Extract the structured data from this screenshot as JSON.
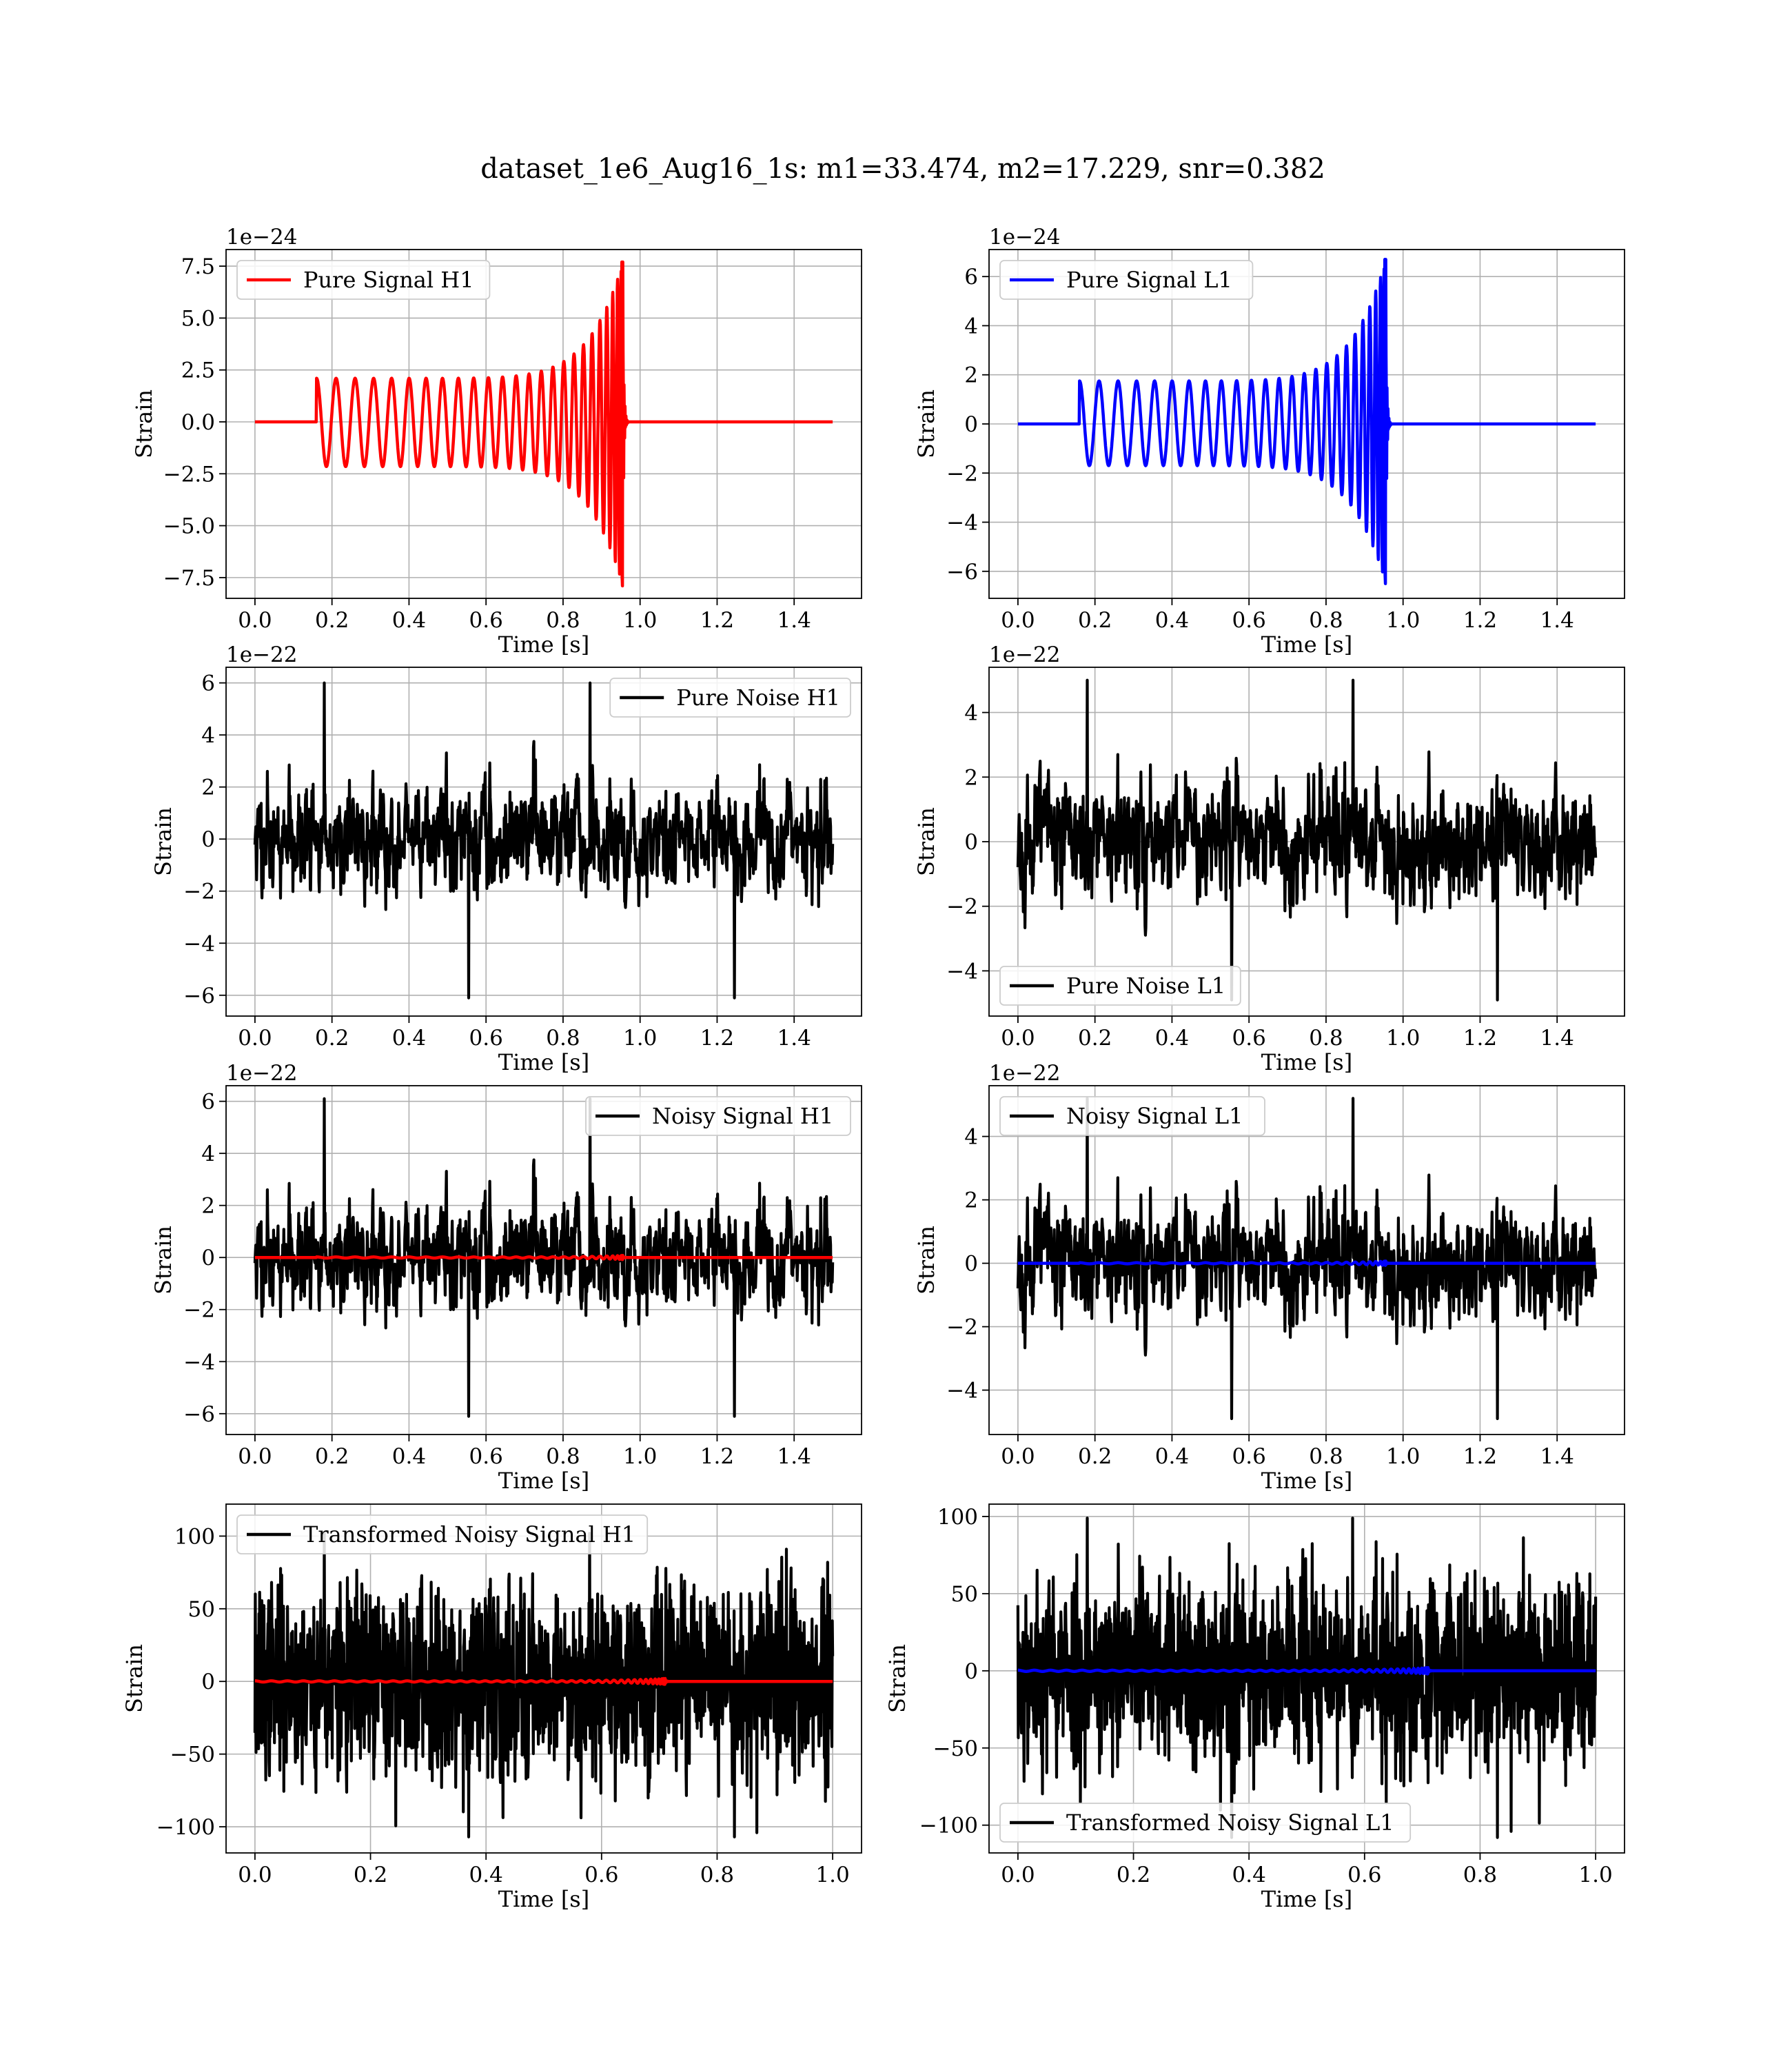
{
  "figure": {
    "title": "dataset_1e6_Aug16_1s: m1=33.474, m2=17.229, snr=0.382"
  },
  "colors": {
    "h1_signal": "#ff0000",
    "l1_signal": "#0000ff",
    "noise": "#000000",
    "grid": "#b0b0b0"
  },
  "chart_data": [
    {
      "type": "line",
      "title": "",
      "xlabel": "Time [s]",
      "ylabel": "Strain",
      "offset_text": "1e−24",
      "xlim": [
        -0.075,
        1.575
      ],
      "ylim": [
        -8.5,
        8.3
      ],
      "xticks": [
        0.0,
        0.2,
        0.4,
        0.6,
        0.8,
        1.0,
        1.2,
        1.4
      ],
      "xtick_labels": [
        "0.0",
        "0.2",
        "0.4",
        "0.6",
        "0.8",
        "1.0",
        "1.2",
        "1.4"
      ],
      "yticks": [
        -7.5,
        -5.0,
        -2.5,
        0.0,
        2.5,
        5.0,
        7.5
      ],
      "ytick_labels": [
        "−7.5",
        "−5.0",
        "−2.5",
        "0.0",
        "2.5",
        "5.0",
        "7.5"
      ],
      "grid": true,
      "legend_position": "upper left",
      "series": [
        {
          "name": "Pure Signal H1",
          "color": "#ff0000",
          "kind": "chirp",
          "x_start": 0.0,
          "x_end": 1.5,
          "onset": 0.16,
          "merger": 0.955,
          "amp_start": 2.1,
          "amp_peak": 7.7,
          "amp_min": -7.9,
          "ringdown": 0.015,
          "cycles": 25
        }
      ]
    },
    {
      "type": "line",
      "title": "",
      "xlabel": "Time [s]",
      "ylabel": "Strain",
      "offset_text": "1e−24",
      "xlim": [
        -0.075,
        1.575
      ],
      "ylim": [
        -7.1,
        7.1
      ],
      "xticks": [
        0.0,
        0.2,
        0.4,
        0.6,
        0.8,
        1.0,
        1.2,
        1.4
      ],
      "xtick_labels": [
        "0.0",
        "0.2",
        "0.4",
        "0.6",
        "0.8",
        "1.0",
        "1.2",
        "1.4"
      ],
      "yticks": [
        -6,
        -4,
        -2,
        0,
        2,
        4,
        6
      ],
      "ytick_labels": [
        "−6",
        "−4",
        "−2",
        "0",
        "2",
        "4",
        "6"
      ],
      "grid": true,
      "legend_position": "upper left",
      "series": [
        {
          "name": "Pure Signal L1",
          "color": "#0000ff",
          "kind": "chirp",
          "x_start": 0.0,
          "x_end": 1.5,
          "onset": 0.16,
          "merger": 0.955,
          "amp_start": 1.75,
          "amp_peak": 6.7,
          "amp_min": -6.5,
          "ringdown": 0.015,
          "cycles": 25
        }
      ]
    },
    {
      "type": "line",
      "title": "",
      "xlabel": "Time [s]",
      "ylabel": "Strain",
      "offset_text": "1e−22",
      "xlim": [
        -0.075,
        1.575
      ],
      "ylim": [
        -6.8,
        6.6
      ],
      "xticks": [
        0.0,
        0.2,
        0.4,
        0.6,
        0.8,
        1.0,
        1.2,
        1.4
      ],
      "xtick_labels": [
        "0.0",
        "0.2",
        "0.4",
        "0.6",
        "0.8",
        "1.0",
        "1.2",
        "1.4"
      ],
      "yticks": [
        -6,
        -4,
        -2,
        0,
        2,
        4,
        6
      ],
      "ytick_labels": [
        "−6",
        "−4",
        "−2",
        "0",
        "2",
        "4",
        "6"
      ],
      "grid": true,
      "legend_position": "upper right",
      "series": [
        {
          "name": "Pure Noise H1",
          "color": "#000000",
          "kind": "noise",
          "x_start": 0.0,
          "x_end": 1.5,
          "n": 1400,
          "amp": 1.5,
          "peak_max": 6.0,
          "peak_min": -6.1,
          "seed": 11
        }
      ]
    },
    {
      "type": "line",
      "title": "",
      "xlabel": "Time [s]",
      "ylabel": "Strain",
      "offset_text": "1e−22",
      "xlim": [
        -0.075,
        1.575
      ],
      "ylim": [
        -5.4,
        5.4
      ],
      "xticks": [
        0.0,
        0.2,
        0.4,
        0.6,
        0.8,
        1.0,
        1.2,
        1.4
      ],
      "xtick_labels": [
        "0.0",
        "0.2",
        "0.4",
        "0.6",
        "0.8",
        "1.0",
        "1.2",
        "1.4"
      ],
      "yticks": [
        -4,
        -2,
        0,
        2,
        4
      ],
      "ytick_labels": [
        "−4",
        "−2",
        "0",
        "2",
        "4"
      ],
      "grid": true,
      "legend_position": "lower left",
      "series": [
        {
          "name": "Pure Noise L1",
          "color": "#000000",
          "kind": "noise",
          "x_start": 0.0,
          "x_end": 1.5,
          "n": 1400,
          "amp": 1.4,
          "peak_max": 5.0,
          "peak_min": -4.9,
          "seed": 23
        }
      ]
    },
    {
      "type": "line",
      "title": "",
      "xlabel": "Time [s]",
      "ylabel": "Strain",
      "offset_text": "1e−22",
      "xlim": [
        -0.075,
        1.575
      ],
      "ylim": [
        -6.8,
        6.6
      ],
      "xticks": [
        0.0,
        0.2,
        0.4,
        0.6,
        0.8,
        1.0,
        1.2,
        1.4
      ],
      "xtick_labels": [
        "0.0",
        "0.2",
        "0.4",
        "0.6",
        "0.8",
        "1.0",
        "1.2",
        "1.4"
      ],
      "yticks": [
        -6,
        -4,
        -2,
        0,
        2,
        4,
        6
      ],
      "ytick_labels": [
        "−6",
        "−4",
        "−2",
        "0",
        "2",
        "4",
        "6"
      ],
      "grid": true,
      "legend_position": "upper right",
      "series": [
        {
          "name": "Noisy Signal H1",
          "color": "#000000",
          "kind": "noise",
          "x_start": 0.0,
          "x_end": 1.5,
          "n": 1400,
          "amp": 1.5,
          "peak_max": 6.1,
          "peak_min": -6.1,
          "seed": 11
        },
        {
          "color": "#ff0000",
          "kind": "chirp",
          "x_start": 0.0,
          "x_end": 1.5,
          "onset": 0.16,
          "merger": 0.955,
          "amp_start": 0.021,
          "amp_peak": 0.077,
          "amp_min": -0.079,
          "ringdown": 0.015,
          "cycles": 25
        }
      ]
    },
    {
      "type": "line",
      "title": "",
      "xlabel": "Time [s]",
      "ylabel": "Strain",
      "offset_text": "1e−22",
      "xlim": [
        -0.075,
        1.575
      ],
      "ylim": [
        -5.4,
        5.6
      ],
      "xticks": [
        0.0,
        0.2,
        0.4,
        0.6,
        0.8,
        1.0,
        1.2,
        1.4
      ],
      "xtick_labels": [
        "0.0",
        "0.2",
        "0.4",
        "0.6",
        "0.8",
        "1.0",
        "1.2",
        "1.4"
      ],
      "yticks": [
        -4,
        -2,
        0,
        2,
        4
      ],
      "ytick_labels": [
        "−4",
        "−2",
        "0",
        "2",
        "4"
      ],
      "grid": true,
      "legend_position": "upper left",
      "series": [
        {
          "name": "Noisy Signal L1",
          "color": "#000000",
          "kind": "noise",
          "x_start": 0.0,
          "x_end": 1.5,
          "n": 1400,
          "amp": 1.4,
          "peak_max": 5.2,
          "peak_min": -4.9,
          "seed": 23
        },
        {
          "color": "#0000ff",
          "kind": "chirp",
          "x_start": 0.0,
          "x_end": 1.5,
          "onset": 0.16,
          "merger": 0.955,
          "amp_start": 0.0175,
          "amp_peak": 0.067,
          "amp_min": -0.065,
          "ringdown": 0.015,
          "cycles": 25
        }
      ]
    },
    {
      "type": "line",
      "title": "",
      "xlabel": "Time [s]",
      "ylabel": "Strain",
      "offset_text": "",
      "xlim": [
        -0.05,
        1.05
      ],
      "ylim": [
        -118,
        122
      ],
      "xticks": [
        0.0,
        0.2,
        0.4,
        0.6,
        0.8,
        1.0
      ],
      "xtick_labels": [
        "0.0",
        "0.2",
        "0.4",
        "0.6",
        "0.8",
        "1.0"
      ],
      "yticks": [
        -100,
        -50,
        0,
        50,
        100
      ],
      "ytick_labels": [
        "−100",
        "−50",
        "0",
        "50",
        "100"
      ],
      "grid": true,
      "legend_position": "upper left",
      "series": [
        {
          "name": "Transformed Noisy Signal H1",
          "color": "#000000",
          "kind": "whitened",
          "x_start": 0.0,
          "x_end": 1.0,
          "n": 1600,
          "amp": 32,
          "peak_max": 102,
          "peak_min": -107,
          "seed": 37
        },
        {
          "color": "#ff0000",
          "kind": "chirp",
          "x_start": 0.0,
          "x_end": 1.0,
          "onset": 0.0,
          "merger": 0.71,
          "amp_start": 0.4,
          "amp_peak": 2.0,
          "amp_min": -2.0,
          "ringdown": 0.01,
          "cycles": 40
        }
      ]
    },
    {
      "type": "line",
      "title": "",
      "xlabel": "Time [s]",
      "ylabel": "Strain",
      "offset_text": "",
      "xlim": [
        -0.05,
        1.05
      ],
      "ylim": [
        -118,
        108
      ],
      "xticks": [
        0.0,
        0.2,
        0.4,
        0.6,
        0.8,
        1.0
      ],
      "xtick_labels": [
        "0.0",
        "0.2",
        "0.4",
        "0.6",
        "0.8",
        "1.0"
      ],
      "yticks": [
        -100,
        -50,
        0,
        50,
        100
      ],
      "ytick_labels": [
        "−100",
        "−50",
        "0",
        "50",
        "100"
      ],
      "grid": true,
      "legend_position": "lower left",
      "series": [
        {
          "name": "Transformed Noisy Signal L1",
          "color": "#000000",
          "kind": "whitened",
          "x_start": 0.0,
          "x_end": 1.0,
          "n": 1600,
          "amp": 30,
          "peak_max": 99,
          "peak_min": -108,
          "seed": 53
        },
        {
          "color": "#0000ff",
          "kind": "chirp",
          "x_start": 0.0,
          "x_end": 1.0,
          "onset": 0.0,
          "merger": 0.71,
          "amp_start": 0.4,
          "amp_peak": 2.0,
          "amp_min": -2.0,
          "ringdown": 0.01,
          "cycles": 40
        }
      ]
    }
  ]
}
